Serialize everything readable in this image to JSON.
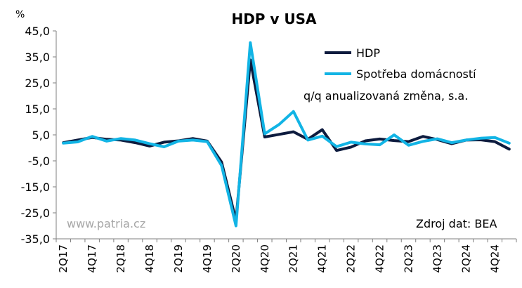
{
  "chart_data": {
    "type": "line",
    "title": "HDP v USA",
    "unit_label": "%",
    "ylim": [
      -35,
      45
    ],
    "yticks": [
      "-35,0",
      "-25,0",
      "-15,0",
      "-5,0",
      "5,0",
      "15,0",
      "25,0",
      "35,0",
      "45,0"
    ],
    "ytick_values": [
      -35,
      -25,
      -15,
      -5,
      5,
      15,
      25,
      35,
      45
    ],
    "x": [
      "2Q17",
      "3Q17",
      "4Q17",
      "1Q18",
      "2Q18",
      "3Q18",
      "4Q18",
      "1Q19",
      "2Q19",
      "3Q19",
      "4Q19",
      "1Q20",
      "2Q20",
      "3Q20",
      "4Q20",
      "1Q21",
      "2Q21",
      "3Q21",
      "4Q21",
      "1Q22",
      "2Q22",
      "3Q22",
      "4Q22",
      "1Q23",
      "2Q23",
      "3Q23",
      "4Q23",
      "1Q24",
      "2Q24",
      "3Q24",
      "4Q24",
      "1Q25"
    ],
    "xtick_labels": [
      "2Q17",
      "4Q17",
      "2Q18",
      "4Q18",
      "2Q19",
      "4Q19",
      "2Q20",
      "4Q20",
      "2Q21",
      "4Q21",
      "2Q22",
      "4Q22",
      "2Q23",
      "4Q23",
      "2Q24",
      "4Q24"
    ],
    "series": [
      {
        "name": "HDP",
        "color": "#0d1b3e",
        "values": [
          2.0,
          3.0,
          4.0,
          3.3,
          3.0,
          2.0,
          0.7,
          2.2,
          2.7,
          3.6,
          2.6,
          -5.5,
          -28.0,
          33.8,
          4.2,
          5.2,
          6.2,
          3.3,
          7.0,
          -1.0,
          0.3,
          2.7,
          3.4,
          2.8,
          2.4,
          4.4,
          3.2,
          1.6,
          3.0,
          3.1,
          2.4,
          -0.5
        ]
      },
      {
        "name": "Spotřeba domácností",
        "color": "#12b4e5",
        "values": [
          1.8,
          2.3,
          4.4,
          2.6,
          3.6,
          3.0,
          1.6,
          0.4,
          2.6,
          3.0,
          2.4,
          -6.8,
          -30.0,
          40.5,
          5.4,
          9.0,
          14.0,
          3.0,
          4.5,
          0.5,
          2.2,
          1.5,
          1.2,
          5.0,
          1.0,
          2.5,
          3.5,
          2.0,
          3.0,
          3.7,
          4.0,
          1.8
        ]
      }
    ],
    "grid": false,
    "legend_position": "top-right",
    "annotation": "q/q anualizovaná změna, s.a.",
    "source_note": "Zdroj dat: BEA",
    "watermark": "www.patria.cz"
  }
}
